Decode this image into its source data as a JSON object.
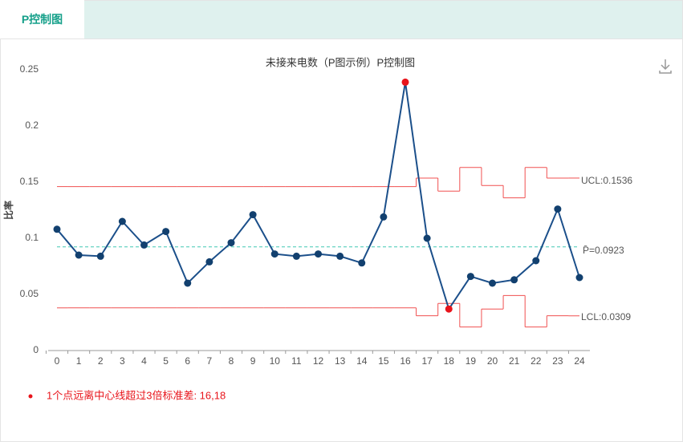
{
  "tab": "P控制图",
  "chart_data": {
    "type": "pchart",
    "title": "未接来电数（P图示例）P控制图",
    "y_label": "比率",
    "categories": [
      "0",
      "1",
      "2",
      "3",
      "4",
      "5",
      "6",
      "7",
      "8",
      "9",
      "10",
      "11",
      "12",
      "13",
      "14",
      "15",
      "16",
      "17",
      "18",
      "19",
      "20",
      "21",
      "22",
      "23",
      "24"
    ],
    "values": [
      0.108,
      0.085,
      0.084,
      0.115,
      0.094,
      0.106,
      0.06,
      0.079,
      0.096,
      0.121,
      0.086,
      0.084,
      0.086,
      0.084,
      0.078,
      0.119,
      0.239,
      0.1,
      0.037,
      0.066,
      0.06,
      0.063,
      0.08,
      0.126,
      0.065
    ],
    "ucl": [
      0.146,
      0.146,
      0.146,
      0.146,
      0.146,
      0.146,
      0.146,
      0.146,
      0.146,
      0.146,
      0.146,
      0.146,
      0.146,
      0.146,
      0.146,
      0.146,
      0.146,
      0.1536,
      0.142,
      0.163,
      0.147,
      0.136,
      0.163,
      0.1536,
      0.1536
    ],
    "lcl": [
      0.038,
      0.038,
      0.038,
      0.038,
      0.038,
      0.038,
      0.038,
      0.038,
      0.038,
      0.038,
      0.038,
      0.038,
      0.038,
      0.038,
      0.038,
      0.038,
      0.038,
      0.031,
      0.042,
      0.021,
      0.037,
      0.049,
      0.021,
      0.031,
      0.0309
    ],
    "center": 0.0923,
    "ucl_label": "UCL:0.1536",
    "center_label": "P̄=0.0923",
    "lcl_label": "LCL:0.0309",
    "out_of_control": [
      16,
      18
    ],
    "color": "#1b4f8a",
    "point_color": "#12406f",
    "alert_color": "#e8141b",
    "limit_color": "#f05050",
    "center_color": "#40c8b4",
    "ylim": [
      0,
      0.25
    ],
    "yticks": [
      0,
      0.05,
      0.1,
      0.15,
      0.2,
      0.25
    ],
    "note": "1个点远离中心线超过3倍标准差: 16,18"
  }
}
